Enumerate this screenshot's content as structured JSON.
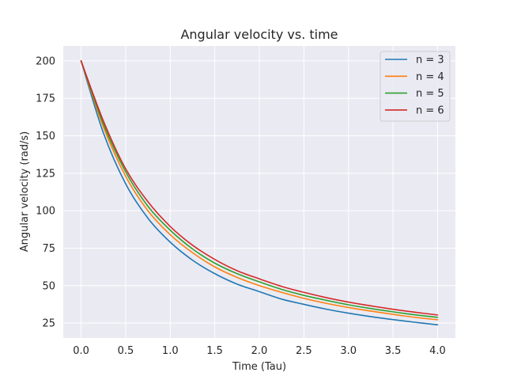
{
  "chart_data": {
    "type": "line",
    "title": "Angular velocity vs. time",
    "xlabel": "Time (Tau)",
    "ylabel": "Angular velocity (rad/s)",
    "xlim": [
      -0.2,
      4.2
    ],
    "ylim": [
      15,
      210
    ],
    "xticks": [
      0.0,
      0.5,
      1.0,
      1.5,
      2.0,
      2.5,
      3.0,
      3.5,
      4.0
    ],
    "xtick_labels": [
      "0.0",
      "0.5",
      "1.0",
      "1.5",
      "2.0",
      "2.5",
      "3.0",
      "3.5",
      "4.0"
    ],
    "yticks": [
      25,
      50,
      75,
      100,
      125,
      150,
      175,
      200
    ],
    "ytick_labels": [
      "25",
      "50",
      "75",
      "100",
      "125",
      "150",
      "175",
      "200"
    ],
    "grid": true,
    "legend_position": "top-right",
    "x": [
      0.0,
      0.25,
      0.5,
      0.75,
      1.0,
      1.25,
      1.5,
      1.75,
      2.0,
      2.25,
      2.5,
      2.75,
      3.0,
      3.25,
      3.5,
      3.75,
      4.0
    ],
    "series": [
      {
        "name": "n = 3",
        "color": "#1f77b4",
        "values": [
          200,
          152,
          118,
          95,
          79,
          67,
          58,
          51,
          46,
          41,
          37.5,
          34.3,
          31.6,
          29.3,
          27.3,
          25.5,
          23.8
        ]
      },
      {
        "name": "n = 4",
        "color": "#ff7f0e",
        "values": [
          200,
          156,
          123,
          100,
          84,
          72,
          62.5,
          55.5,
          50,
          45.5,
          41.5,
          38.2,
          35.4,
          33,
          30.8,
          28.8,
          27.2
        ]
      },
      {
        "name": "n = 5",
        "color": "#2ca02c",
        "values": [
          200,
          158,
          126,
          103,
          87,
          74.5,
          65,
          58,
          52.5,
          47.5,
          43.5,
          40.2,
          37.2,
          34.7,
          32.5,
          30.5,
          28.8
        ]
      },
      {
        "name": "n = 6",
        "color": "#d62728",
        "values": [
          200,
          160,
          128,
          106,
          89.5,
          77,
          67.5,
          60,
          54.5,
          49.5,
          45.5,
          42,
          39,
          36.5,
          34.2,
          32.2,
          30.4
        ]
      }
    ]
  }
}
